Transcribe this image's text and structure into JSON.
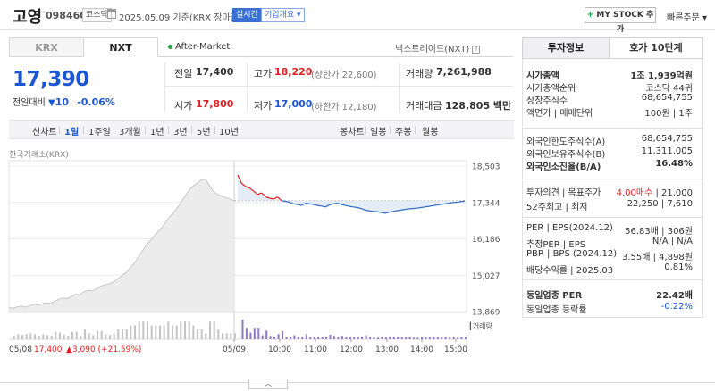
{
  "header": {
    "name": "고영",
    "code": "098460",
    "market": "코스닥",
    "date_text": "2025.05.09 기준(KRX 장마감)",
    "realtime_badge": "실시간",
    "overview_badge": "기업개요",
    "mystock_label": "MY STOCK 추가",
    "quick_order": "빠른주문"
  },
  "tabs": {
    "krx": "KRX",
    "nxt": "NXT",
    "after_market": "After-Market",
    "nextrade": "넥스트레이드(NXT)"
  },
  "price": {
    "current": "17,390",
    "change_label": "전일대비",
    "change_amount": "10",
    "change_pct": "-0.06%"
  },
  "quotes": {
    "prev_label": "전일",
    "prev": "17,400",
    "high_label": "고가",
    "high": "18,220",
    "upper_limit": "(상한가 22,600)",
    "volume_label": "거래량",
    "volume": "7,261,988",
    "open_label": "시가",
    "open": "17,800",
    "low_label": "저가",
    "low": "17,000",
    "lower_limit": "(하한가 12,180)",
    "amount_label": "거래대금",
    "amount": "128,805 백만"
  },
  "period_bar": {
    "items": [
      "선차트",
      "1일",
      "1주일",
      "3개월",
      "1년",
      "3년",
      "5년",
      "10년"
    ],
    "active": "1일",
    "candle_items": [
      "봉차트",
      "일봉",
      "주봉",
      "월봉"
    ]
  },
  "chart_source": "한국거래소(KRX)",
  "chart_data": {
    "type": "line",
    "y_ticks": [
      "18,503",
      "17,344",
      "16,186",
      "15,027",
      "13,869"
    ],
    "y_tick_values": [
      18503,
      17344,
      16186,
      15027,
      13869
    ],
    "ylim": [
      13869,
      18503
    ],
    "x_ticks": [
      "05/09",
      "10:00",
      "11:00",
      "12:00",
      "13:00",
      "14:00",
      "15:00"
    ],
    "prev_session_label": "05/08",
    "prev_session_summary": "17,400",
    "prev_session_change": "▲3,090 (+21.59%)",
    "volume_label": "거래량",
    "reference": 17400,
    "prev_day_series": [
      14000,
      13980,
      14020,
      14050,
      14010,
      14060,
      14100,
      14080,
      14120,
      14150,
      14130,
      14200,
      14260,
      14300,
      14280,
      14350,
      14420,
      14400,
      14500,
      14550,
      14520,
      14600,
      14680,
      14720,
      14750,
      14800,
      14900,
      15000,
      15100,
      15250,
      15400,
      15600,
      15800,
      16000,
      16150,
      16300,
      16450,
      16600,
      16800,
      16950,
      17100,
      17300,
      17500,
      17700,
      17850,
      17950,
      18050,
      18100,
      17900,
      17700,
      17600,
      17550,
      17500,
      17450,
      17400
    ],
    "today_series": [
      18220,
      17950,
      17850,
      17800,
      17700,
      17600,
      17650,
      17520,
      17480,
      17450,
      17520,
      17400,
      17380,
      17350,
      17300,
      17280,
      17250,
      17320,
      17300,
      17280,
      17250,
      17230,
      17200,
      17260,
      17300,
      17320,
      17280,
      17250,
      17220,
      17200,
      17180,
      17150,
      17100,
      17080,
      17060,
      17050,
      17020,
      17000,
      17030,
      17060,
      17080,
      17100,
      17120,
      17140,
      17150,
      17160,
      17180,
      17200,
      17220,
      17240,
      17260,
      17280,
      17300,
      17320,
      17340,
      17350,
      17370,
      17390
    ]
  },
  "right_panel": {
    "tab_info": "투자정보",
    "tab_hoga": "호가 10단계",
    "rows1": [
      {
        "label": "시가총액",
        "value": "1조 1,939억원",
        "bold": true
      },
      {
        "label": "시가총액순위",
        "value": "코스닥 44위"
      },
      {
        "label": "상장주식수",
        "value": "68,654,755"
      },
      {
        "label": "액면가 | 매매단위",
        "value": "100원 | 1주"
      }
    ],
    "rows2": [
      {
        "label": "외국인한도주식수(A)",
        "value": "68,654,755"
      },
      {
        "label": "외국인보유주식수(B)",
        "value": "11,311,005"
      },
      {
        "label": "외국인소진율(B/A)",
        "value": "16.48%",
        "bold": true
      }
    ],
    "rows3": [
      {
        "label": "투자의견 | 목표주가",
        "value_red": "4.00매수",
        "value": " | 21,000"
      },
      {
        "label": "52주최고 | 최저",
        "value": "22,250 | 7,610"
      }
    ],
    "rows4": [
      {
        "label": "PER | EPS(2024.12)",
        "value": "56.83배 | 306원"
      },
      {
        "label": "추정PER | EPS",
        "value": "N/A | N/A"
      },
      {
        "label": "PBR | BPS (2024.12)",
        "value": "3.55배 | 4,898원"
      },
      {
        "label": "배당수익률 | 2025.03",
        "value": "0.81%"
      }
    ],
    "rows5": [
      {
        "label": "동일업종 PER",
        "value": "22.42배",
        "bold": true
      },
      {
        "label": "동일업종 등락률",
        "value": "-0.22%",
        "blue": true
      }
    ]
  },
  "colors": {
    "up": "#e22121",
    "down": "#1c56d6",
    "accent": "#3a6fd6"
  }
}
